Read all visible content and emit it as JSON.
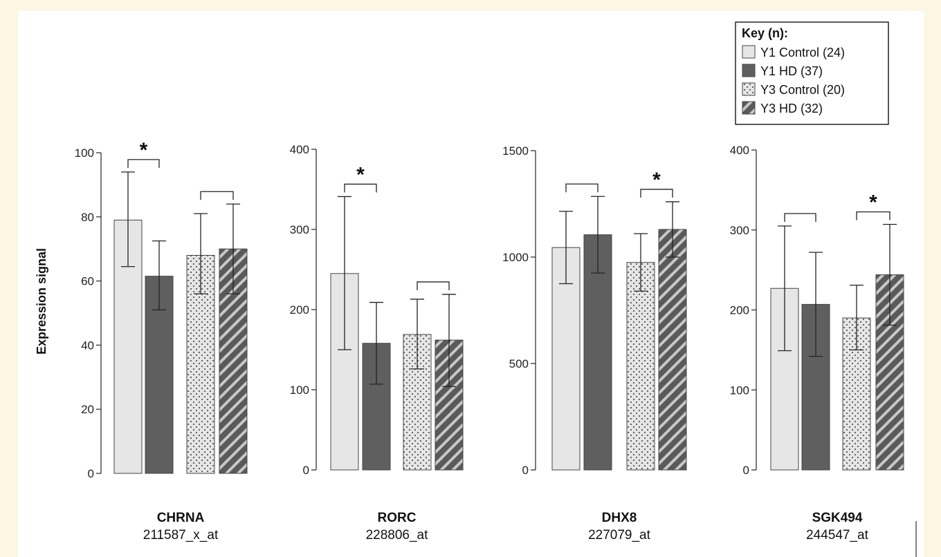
{
  "chart_data": {
    "type": "bar",
    "ylabel": "Expression signal",
    "legend": {
      "title": "Key (n):",
      "placement": "top-right",
      "entries": [
        {
          "label": "Y1 Control (24)",
          "pattern": "solid-light",
          "color": "#e6e6e6"
        },
        {
          "label": "Y1 HD (37)",
          "pattern": "solid-dark",
          "color": "#5f5f5f"
        },
        {
          "label": "Y3 Control (20)",
          "pattern": "dots",
          "color": "#e6e6e6"
        },
        {
          "label": "Y3 HD (32)",
          "pattern": "stripes",
          "color": "#5f5f5f"
        }
      ]
    },
    "panels": [
      {
        "gene": "CHRNA",
        "probe": "211587_x_at",
        "ylim": [
          0,
          100
        ],
        "ticks": [
          "0",
          "20",
          "40",
          "60",
          "80",
          "100"
        ],
        "series": [
          {
            "name": "Y1 Control (24)",
            "value": 79,
            "err_low": 64.5,
            "err_high": 94
          },
          {
            "name": "Y1 HD (37)",
            "value": 61.5,
            "err_low": 51,
            "err_high": 72.5
          },
          {
            "name": "Y3 Control (20)",
            "value": 68,
            "err_low": 56,
            "err_high": 81
          },
          {
            "name": "Y3 HD (32)",
            "value": 70,
            "err_low": 56,
            "err_high": 84
          }
        ],
        "comparisons": [
          {
            "pair": "Y1",
            "significant": true,
            "marker": "*"
          },
          {
            "pair": "Y3",
            "significant": false,
            "marker": ""
          }
        ]
      },
      {
        "gene": "RORC",
        "probe": "228806_at",
        "ylim": [
          0,
          400
        ],
        "ticks": [
          "0",
          "100",
          "200",
          "300",
          "400"
        ],
        "series": [
          {
            "name": "Y1 Control (24)",
            "value": 245,
            "err_low": 150,
            "err_high": 341
          },
          {
            "name": "Y1 HD (37)",
            "value": 158,
            "err_low": 107,
            "err_high": 209
          },
          {
            "name": "Y3 Control (20)",
            "value": 169,
            "err_low": 126,
            "err_high": 213
          },
          {
            "name": "Y3 HD (32)",
            "value": 162,
            "err_low": 104,
            "err_high": 219
          }
        ],
        "comparisons": [
          {
            "pair": "Y1",
            "significant": true,
            "marker": "*"
          },
          {
            "pair": "Y3",
            "significant": false,
            "marker": ""
          }
        ]
      },
      {
        "gene": "DHX8",
        "probe": "227079_at",
        "ylim": [
          0,
          1500
        ],
        "ticks": [
          "0",
          "500",
          "1000",
          "1500"
        ],
        "series": [
          {
            "name": "Y1 Control (24)",
            "value": 1045,
            "err_low": 875,
            "err_high": 1215
          },
          {
            "name": "Y1 HD (37)",
            "value": 1105,
            "err_low": 925,
            "err_high": 1285
          },
          {
            "name": "Y3 Control (20)",
            "value": 975,
            "err_low": 840,
            "err_high": 1110
          },
          {
            "name": "Y3 HD (32)",
            "value": 1130,
            "err_low": 1000,
            "err_high": 1260
          }
        ],
        "comparisons": [
          {
            "pair": "Y1",
            "significant": false,
            "marker": ""
          },
          {
            "pair": "Y3",
            "significant": true,
            "marker": "*"
          }
        ]
      },
      {
        "gene": "SGK494",
        "probe": "244547_at",
        "ylim": [
          0,
          400
        ],
        "ticks": [
          "0",
          "100",
          "200",
          "300",
          "400"
        ],
        "series": [
          {
            "name": "Y1 Control (24)",
            "value": 227,
            "err_low": 149,
            "err_high": 305
          },
          {
            "name": "Y1 HD (37)",
            "value": 207,
            "err_low": 142,
            "err_high": 272
          },
          {
            "name": "Y3 Control (20)",
            "value": 190,
            "err_low": 150,
            "err_high": 231
          },
          {
            "name": "Y3 HD (32)",
            "value": 244,
            "err_low": 181,
            "err_high": 307
          }
        ],
        "comparisons": [
          {
            "pair": "Y1",
            "significant": false,
            "marker": ""
          },
          {
            "pair": "Y3",
            "significant": true,
            "marker": "*"
          }
        ]
      }
    ]
  }
}
